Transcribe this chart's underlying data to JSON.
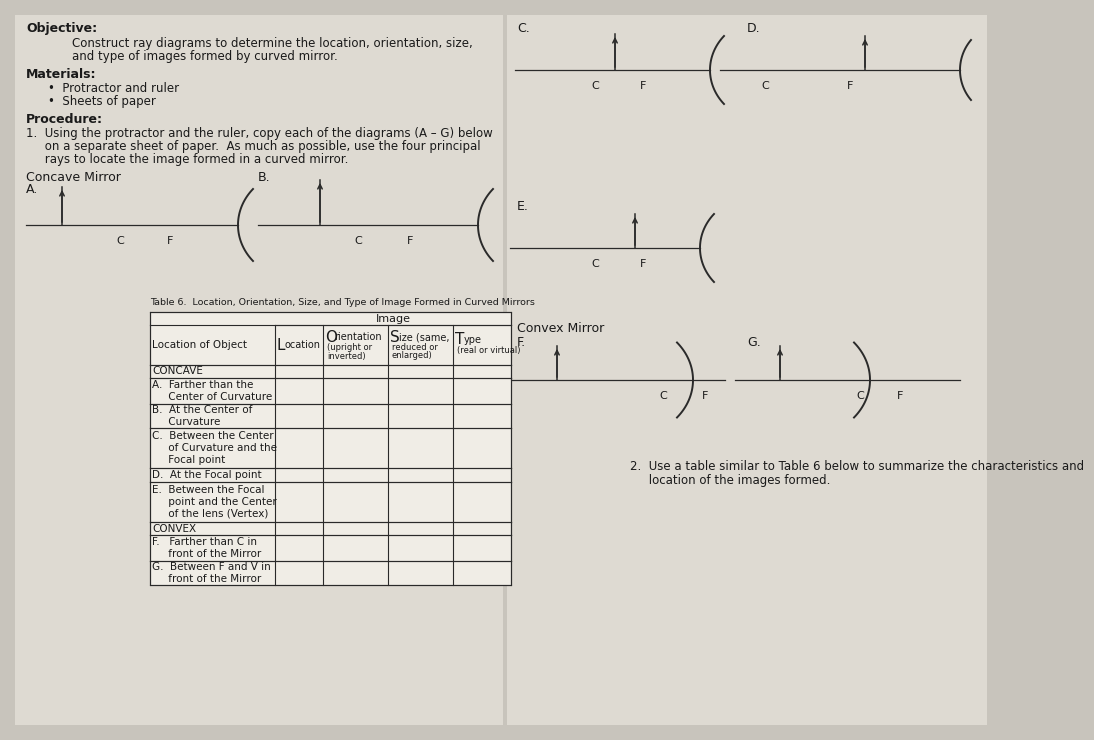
{
  "bg_color": "#c8c4bc",
  "left_paper": "#dedad2",
  "right_paper": "#dedad2",
  "table_paper": "#f0ede6",
  "text_color": "#1a1a1a",
  "line_color": "#2a2a2a",
  "objective_bold": "Objective:",
  "objective_text1": "Construct ray diagrams to determine the location, orientation, size,",
  "objective_text2": "and type of images formed by curved mirror.",
  "materials_bold": "Materials:",
  "materials_items": [
    "Protractor and ruler",
    "Sheets of paper"
  ],
  "procedure_bold": "Procedure:",
  "procedure_lines": [
    "1.  Using the protractor and the ruler, copy each of the diagrams (A – G) below",
    "     on a separate sheet of paper.  As much as possible, use the four principal",
    "     rays to locate the image formed in a curved mirror."
  ],
  "concave_label": "Concave Mirror",
  "convex_label": "Convex Mirror",
  "table_title": "Table 6.  Location, Orientation, Size, and Type of Image Formed in Curved Mirrors",
  "note2_lines": [
    "2.  Use a table similar to Table 6 below to summarize the characteristics and",
    "     location of the images formed."
  ]
}
